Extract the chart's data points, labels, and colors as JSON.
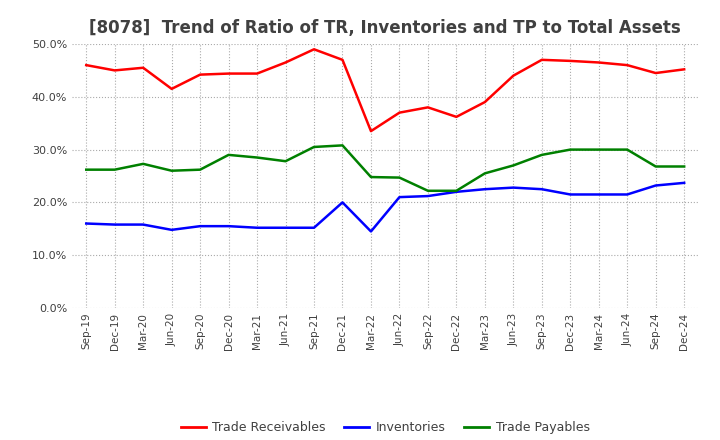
{
  "title": "[8078]  Trend of Ratio of TR, Inventories and TP to Total Assets",
  "x_labels": [
    "Sep-19",
    "Dec-19",
    "Mar-20",
    "Jun-20",
    "Sep-20",
    "Dec-20",
    "Mar-21",
    "Jun-21",
    "Sep-21",
    "Dec-21",
    "Mar-22",
    "Jun-22",
    "Sep-22",
    "Dec-22",
    "Mar-23",
    "Jun-23",
    "Sep-23",
    "Dec-23",
    "Mar-24",
    "Jun-24",
    "Sep-24",
    "Dec-24"
  ],
  "trade_receivables": [
    0.46,
    0.45,
    0.455,
    0.415,
    0.442,
    0.444,
    0.444,
    0.465,
    0.49,
    0.47,
    0.335,
    0.37,
    0.38,
    0.362,
    0.39,
    0.44,
    0.47,
    0.468,
    0.465,
    0.46,
    0.445,
    0.452
  ],
  "inventories": [
    0.16,
    0.158,
    0.158,
    0.148,
    0.155,
    0.155,
    0.152,
    0.152,
    0.152,
    0.2,
    0.145,
    0.21,
    0.212,
    0.22,
    0.225,
    0.228,
    0.225,
    0.215,
    0.215,
    0.215,
    0.232,
    0.237
  ],
  "trade_payables": [
    0.262,
    0.262,
    0.273,
    0.26,
    0.262,
    0.29,
    0.285,
    0.278,
    0.305,
    0.308,
    0.248,
    0.247,
    0.222,
    0.222,
    0.255,
    0.27,
    0.29,
    0.3,
    0.3,
    0.3,
    0.268,
    0.268
  ],
  "tr_color": "#ff0000",
  "inv_color": "#0000ff",
  "tp_color": "#008000",
  "ylim": [
    0.0,
    0.5
  ],
  "yticks": [
    0.0,
    0.1,
    0.2,
    0.3,
    0.4,
    0.5
  ],
  "bg_color": "#ffffff",
  "grid_color": "#aaaaaa",
  "title_fontsize": 12,
  "title_color": "#404040",
  "legend_labels": [
    "Trade Receivables",
    "Inventories",
    "Trade Payables"
  ]
}
